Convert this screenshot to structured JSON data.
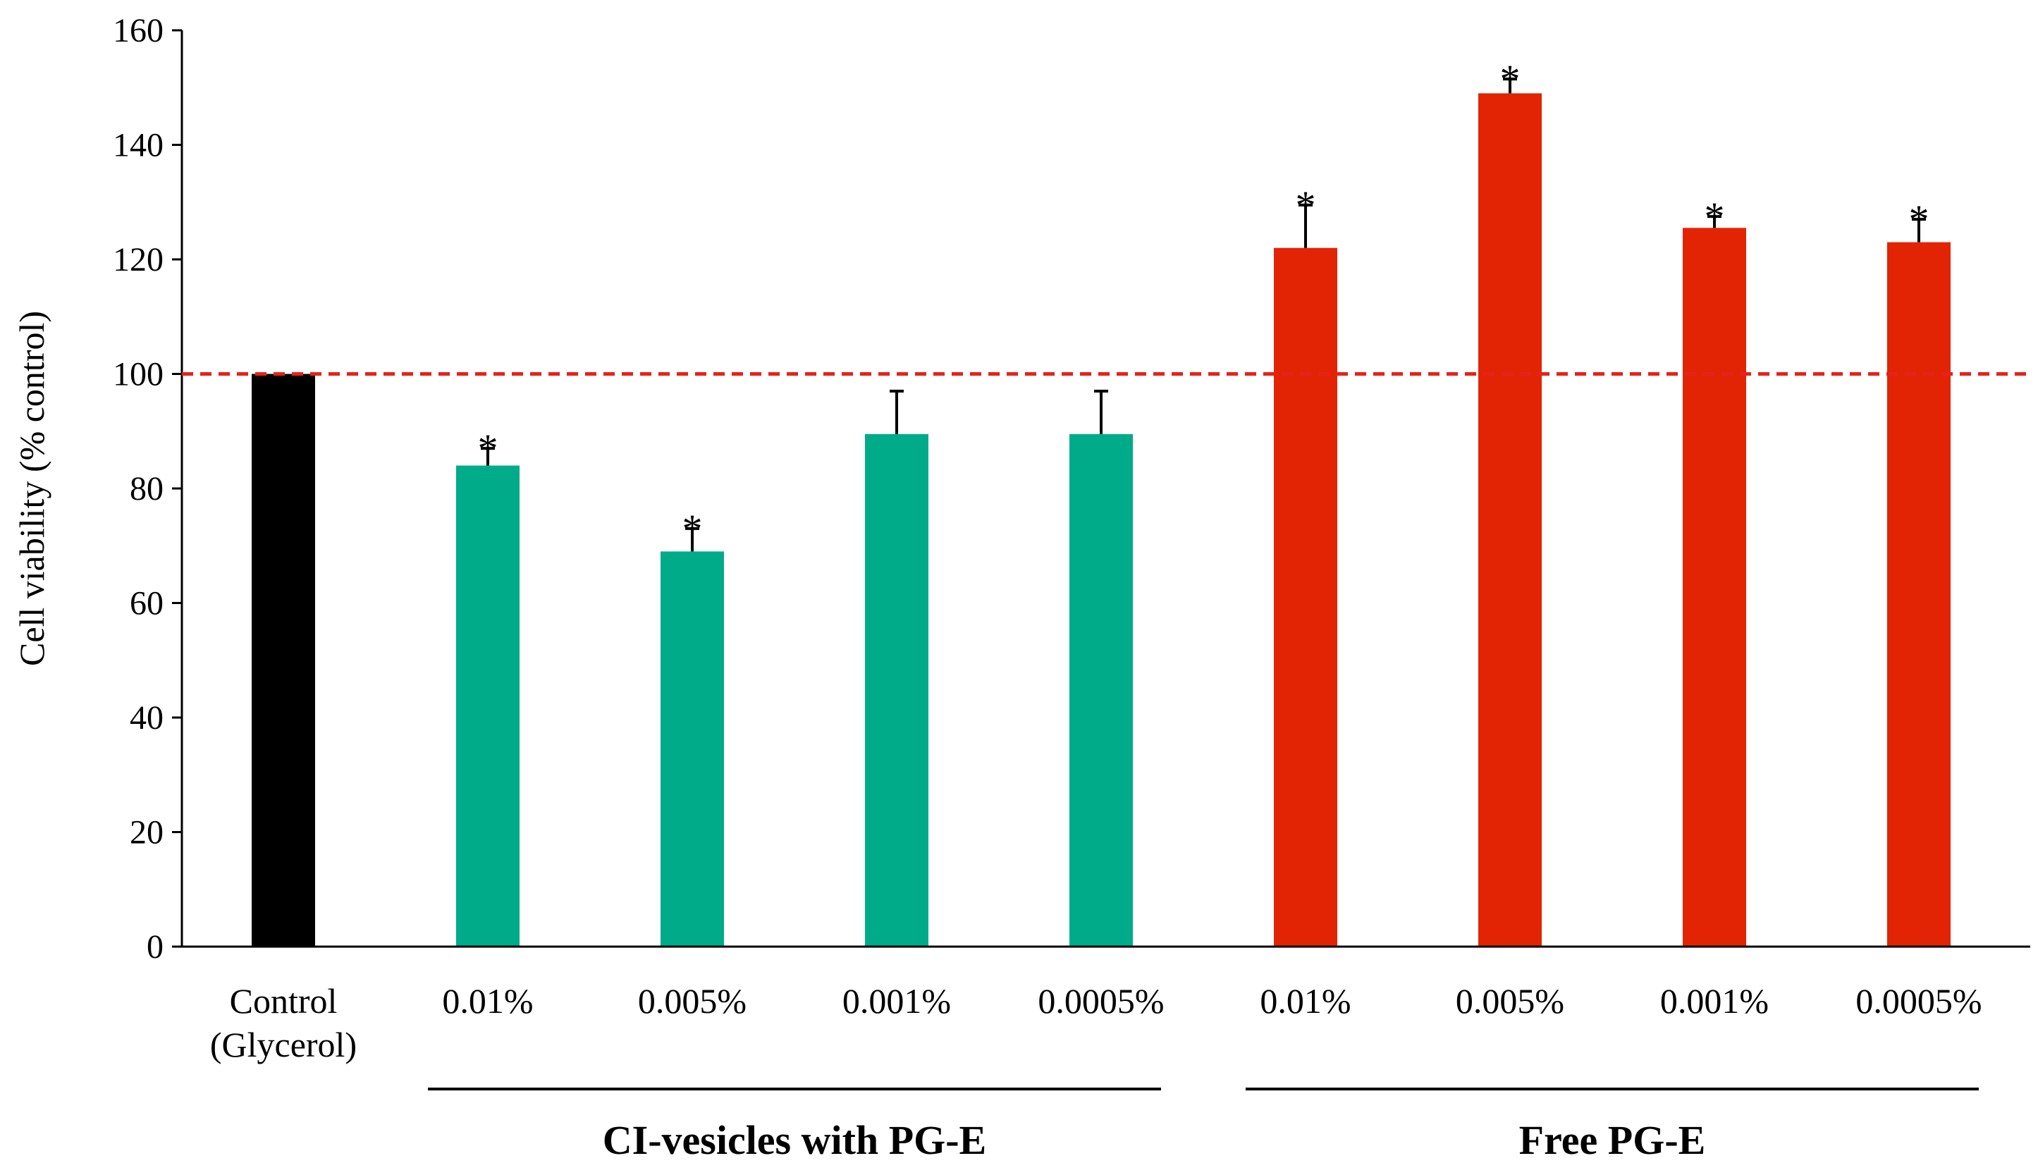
{
  "chart_data": {
    "type": "bar",
    "title": "",
    "xlabel": "",
    "ylabel": "Cell viability (% control)",
    "ylim": [
      0,
      160
    ],
    "yticks": [
      0,
      20,
      40,
      60,
      80,
      100,
      120,
      140,
      160
    ],
    "grid": false,
    "reference_line": {
      "value": 100,
      "style": "dashed",
      "color": "#e8221a"
    },
    "categories": [
      [
        "Control",
        "(Glycerol)"
      ],
      [
        "0.01%"
      ],
      [
        "0.005%"
      ],
      [
        "0.001%"
      ],
      [
        "0.0005%"
      ],
      [
        "0.01%"
      ],
      [
        "0.005%"
      ],
      [
        "0.001%"
      ],
      [
        "0.0005%"
      ]
    ],
    "values": [
      100,
      84,
      69,
      89.5,
      89.5,
      122,
      149,
      125.5,
      123
    ],
    "errors": [
      0,
      3,
      4,
      7.5,
      7.5,
      7.5,
      2.5,
      2,
      4
    ],
    "significant": [
      false,
      true,
      true,
      false,
      false,
      true,
      true,
      true,
      true
    ],
    "bar_colors": [
      "#000000",
      "#00ab8a",
      "#00ab8a",
      "#00ab8a",
      "#00ab8a",
      "#e22405",
      "#e22405",
      "#e22405",
      "#e22405"
    ],
    "groups": [
      {
        "label": "CI-vesicles with PG-E",
        "start": 1,
        "end": 4
      },
      {
        "label": "Free PG-E",
        "start": 5,
        "end": 8
      }
    ],
    "significance_marker": "*"
  }
}
